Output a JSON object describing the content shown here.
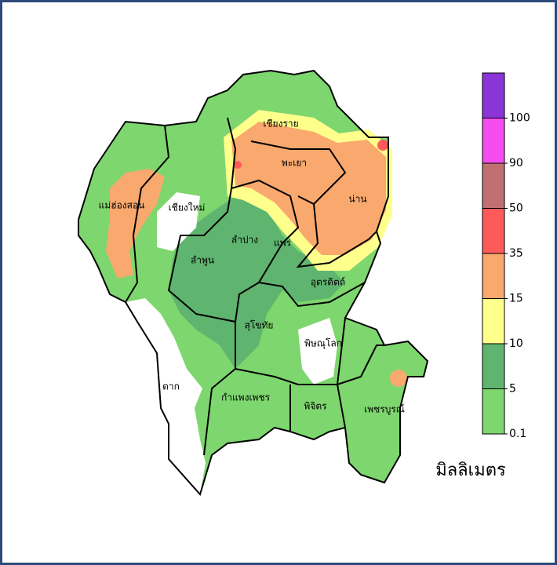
{
  "map": {
    "provinces": [
      "แม่ฮ่องสอน",
      "เชียงใหม่",
      "เชียงราย",
      "พะเยา",
      "น่าน",
      "ลำปาง",
      "ลำพูน",
      "แพร่",
      "อุตรดิตถ์",
      "สุโขทัย",
      "พิษณุโลก",
      "ตาก",
      "กำแพงเพชร",
      "พิจิตร",
      "เพชรบูรณ์"
    ],
    "legend": {
      "ticks": [
        0.1,
        5,
        10,
        15,
        35,
        50,
        90,
        100
      ],
      "colors": [
        "#7ed66e",
        "#5fb46f",
        "#ffff8c",
        "#f9a86e",
        "#ff5a5a",
        "#c07070",
        "#f54cf0",
        "#8a35d8"
      ],
      "unit": "มิลลิเมตร"
    }
  }
}
